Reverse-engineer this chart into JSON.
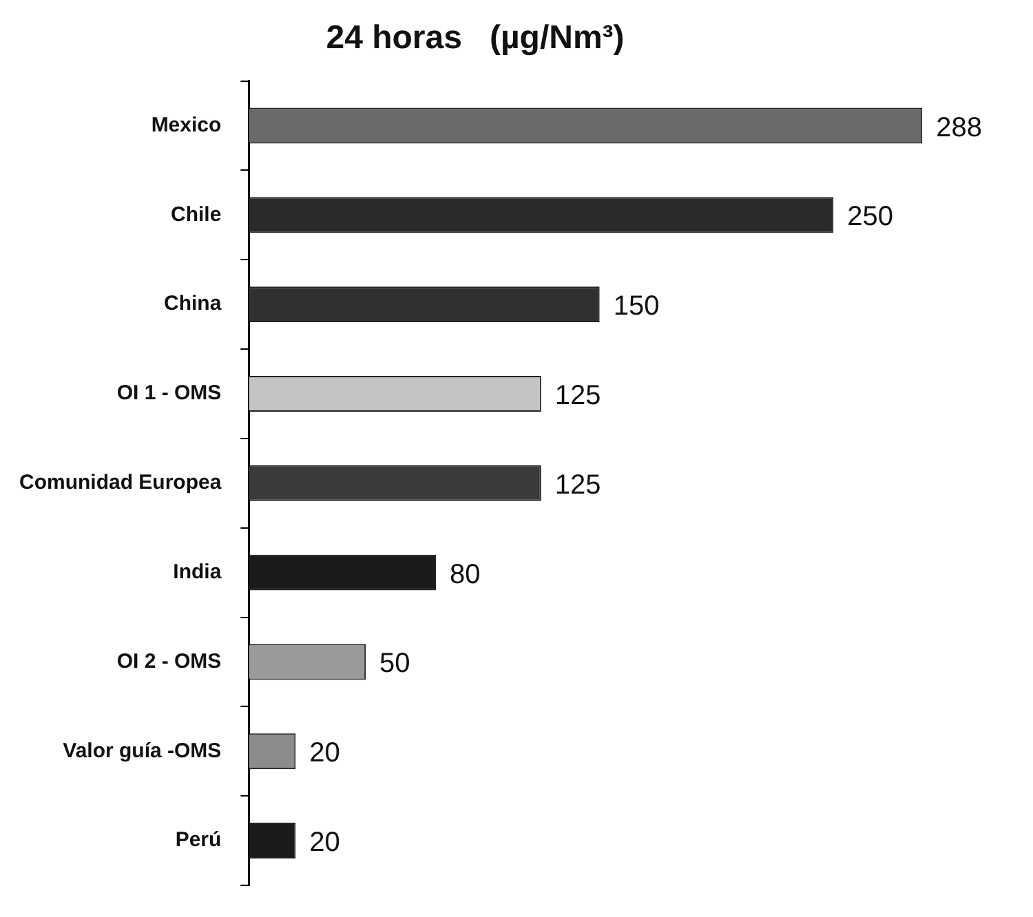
{
  "chart_data": {
    "type": "bar",
    "orientation": "horizontal",
    "title": "24 horas   (µg/Nm³)",
    "categories": [
      "Mexico",
      "Chile",
      "China",
      "OI 1 - OMS",
      "Comunidad Europea",
      "India",
      "OI 2 - OMS",
      "Valor guía -OMS",
      "Perú"
    ],
    "values": [
      288,
      250,
      150,
      125,
      125,
      80,
      50,
      20,
      20
    ],
    "colors": [
      "#6a6a6a",
      "#2a2a2a",
      "#303030",
      "#c4c4c4",
      "#3a3a3a",
      "#1a1a1a",
      "#9a9a9a",
      "#8c8c8c",
      "#1a1a1a"
    ],
    "data_labels": true,
    "legend": false
  }
}
